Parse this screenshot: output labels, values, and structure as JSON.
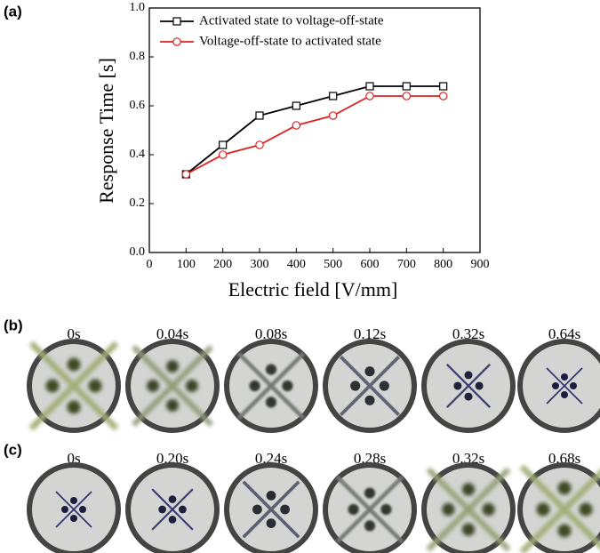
{
  "chart_data": {
    "type": "line",
    "panel_label": "(a)",
    "x_label": "Electric field [V/mm]",
    "y_label": "Response Time [s]",
    "x": [
      100,
      200,
      300,
      400,
      500,
      600,
      700,
      800
    ],
    "series": [
      {
        "name": "Activated state to voltage-off-state",
        "color": "#000000",
        "marker": "square",
        "values": [
          0.32,
          0.44,
          0.56,
          0.6,
          0.64,
          0.68,
          0.68,
          0.68
        ]
      },
      {
        "name": "Voltage-off-state to activated state",
        "color": "#e02020",
        "marker": "circle",
        "values": [
          0.32,
          0.4,
          0.44,
          0.52,
          0.56,
          0.64,
          0.64,
          0.64
        ]
      }
    ],
    "xlim": [
      0,
      900
    ],
    "xticks": [
      0,
      100,
      200,
      300,
      400,
      500,
      600,
      700,
      800,
      900
    ],
    "ylim": [
      0,
      1
    ],
    "yticks": [
      {
        "value": 0,
        "label": "0.0"
      },
      0.2,
      0.4,
      0.6,
      0.8,
      {
        "value": 1,
        "label": "1.0"
      }
    ],
    "grid": false,
    "legend": "upper left"
  },
  "panels": [
    {
      "label": "(b)",
      "times": [
        "0s",
        "0.04s",
        "0.08s",
        "0.12s",
        "0.32s",
        "0.64s"
      ]
    },
    {
      "label": "(c)",
      "times": [
        "0s",
        "0.20s",
        "0.24s",
        "0.28s",
        "0.32s",
        "0.68s"
      ]
    }
  ]
}
